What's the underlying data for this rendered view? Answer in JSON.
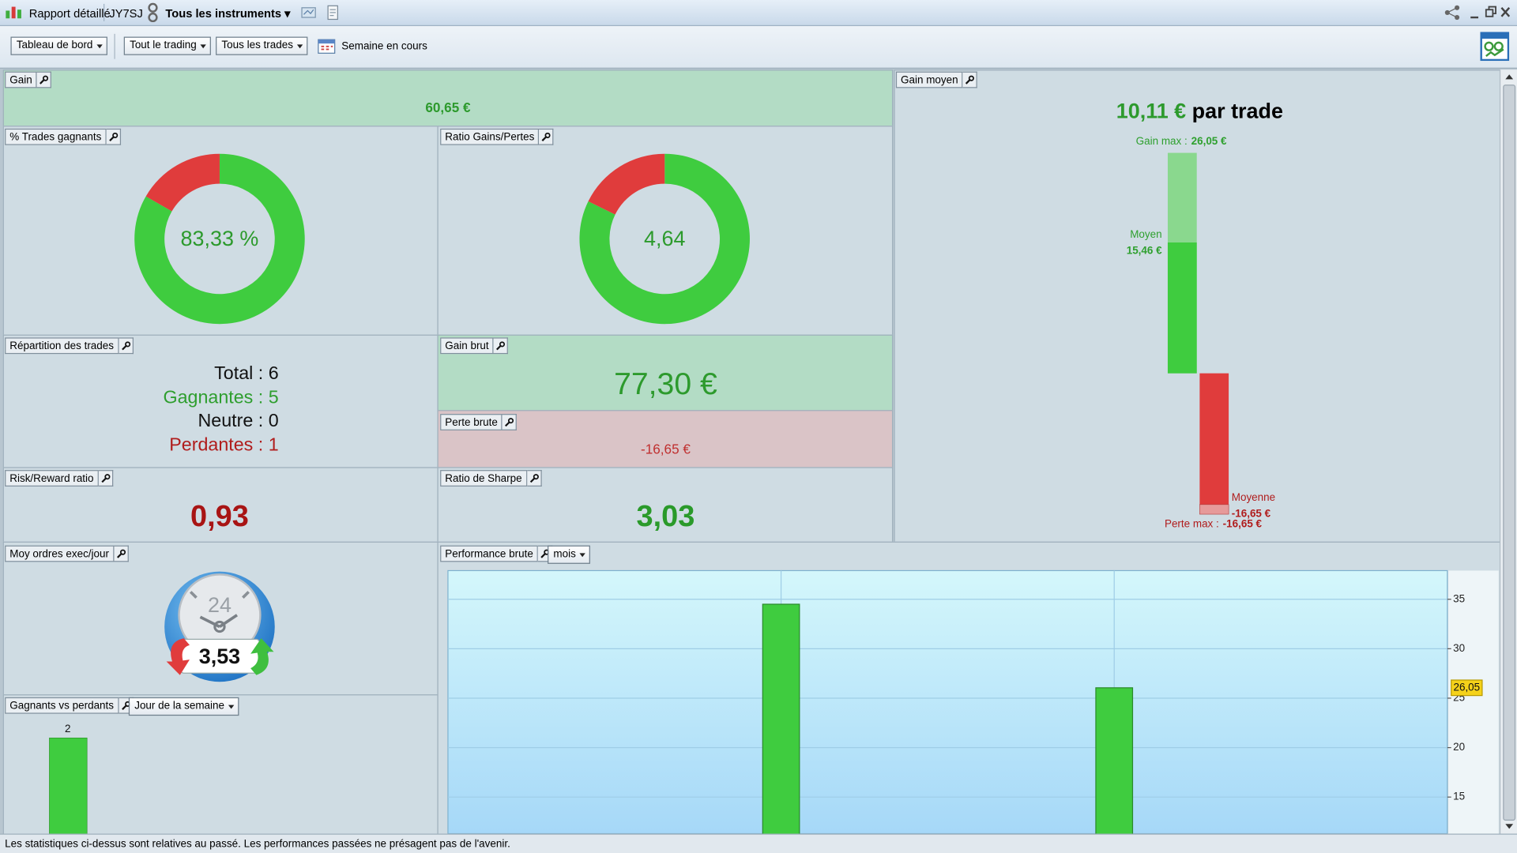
{
  "window": {
    "title": "Rapport détaillé",
    "account": "JY7SJ",
    "instruments": "Tous les instruments"
  },
  "toolbar": {
    "view": "Tableau de bord",
    "trading": "Tout le trading",
    "trades": "Tous les trades",
    "period": "Semaine en cours"
  },
  "panels": {
    "gain": {
      "title": "Gain",
      "value": "60,65 €"
    },
    "win_rate": {
      "title": "% Trades gagnants",
      "center": "83,33 %",
      "chart_data": {
        "type": "donut",
        "values": [
          5,
          1
        ],
        "colors": [
          "#3fcc3f",
          "#e03c3c"
        ]
      }
    },
    "ratio": {
      "title": "Ratio Gains/Pertes",
      "center": "4,64",
      "chart_data": {
        "type": "donut",
        "values": [
          77.3,
          16.65
        ],
        "colors": [
          "#3fcc3f",
          "#e03c3c"
        ]
      }
    },
    "distribution": {
      "title": "Répartition des trades",
      "lines": [
        "Total : 6",
        "Gagnantes : 5",
        "Neutre : 0",
        "Perdantes : 1"
      ]
    },
    "gross_gain": {
      "title": "Gain brut",
      "value": "77,30 €"
    },
    "gross_loss": {
      "title": "Perte brute",
      "value": "-16,65 €"
    },
    "risk_reward": {
      "title": "Risk/Reward ratio",
      "value": "0,93"
    },
    "sharpe": {
      "title": "Ratio de Sharpe",
      "value": "3,03"
    },
    "orders": {
      "title": "Moy ordres exec/jour",
      "dial": "24",
      "value": "3,53"
    },
    "avg_gain": {
      "title": "Gain moyen",
      "value": "10,11 €",
      "suffix": "par trade",
      "chart_data": {
        "type": "range_bar",
        "items": [
          {
            "label": "Gain max :",
            "value": 26.05,
            "value_label": "26,05 €",
            "color": "#8ad88e"
          },
          {
            "label": "Moyen",
            "value": 15.46,
            "value_label": "15,46 €",
            "color": "#3fcc3f"
          },
          {
            "label": "Moyenne",
            "value": -16.65,
            "value_label": "-16,65 €",
            "color": "#e03c3c"
          },
          {
            "label": "Perte max :",
            "value": -16.65,
            "value_label": "-16,65 €",
            "color": "#e69a9a"
          }
        ]
      }
    },
    "win_loss": {
      "title": "Gagnants vs perdants",
      "period": "Jour de la semaine",
      "chart_data": {
        "type": "bar",
        "categories": [
          null
        ],
        "values": [
          2
        ],
        "color": "#3fcc3f"
      }
    },
    "performance": {
      "title": "Performance brute",
      "period": "mois",
      "chart_data": {
        "type": "bar",
        "categories": [
          null,
          null
        ],
        "values": [
          34.5,
          26.05
        ],
        "color": "#3fcc3f",
        "ylim": [
          11.3,
          37.9
        ],
        "yticks": [
          15,
          20,
          25,
          30,
          35
        ],
        "grid": true,
        "last_value": {
          "value": 26.05,
          "label": "26,05"
        }
      }
    }
  },
  "status": "Les statistiques ci-dessus sont relatives au passé. Les performances passées ne présagent pas de l'avenir."
}
